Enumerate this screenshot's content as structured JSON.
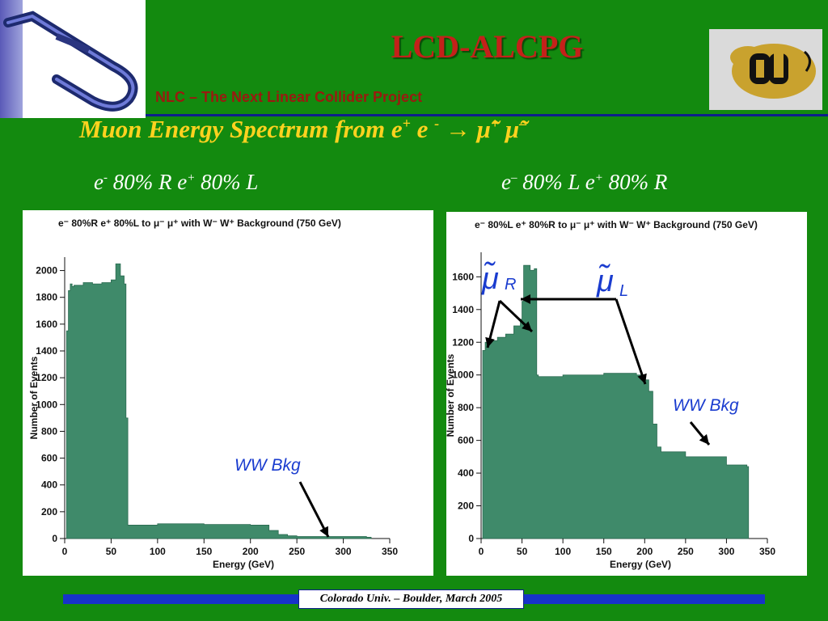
{
  "header": {
    "title": "LCD-ALCPG",
    "subtitle": "NLC – The Next Linear Collider Project",
    "logo_left_icon": "nlc-logo-icon",
    "logo_right_icon": "cu-buffalo-logo-icon"
  },
  "heading": {
    "text": "Muon Energy Spectrum from  e",
    "sup1": "+",
    "mid": " e ",
    "sup2": "-",
    "arrow": "  →  ",
    "smuon": "μ̃",
    "sup3": "+",
    "smuon2": " μ̃",
    "sup4": "–"
  },
  "panels": {
    "left": {
      "e1": "e",
      "s1": "-",
      "t1": "  80% R   e",
      "s2": "+",
      "t2": "  80% L"
    },
    "right": {
      "e1": "e",
      "s1": "–",
      "t1": " 80% L  e",
      "s2": "+",
      "t2": "  80% R"
    }
  },
  "annotations": {
    "ww_bkg": "WW Bkg",
    "smuon_r": "μ̃",
    "smuon_r_sub": "R",
    "smuon_l": "μ̃",
    "smuon_l_sub": "L"
  },
  "footer": {
    "text": "Colorado Univ. – Boulder, March 2005"
  },
  "colors": {
    "bar": "#3f8a6a",
    "background": "#138a0f",
    "title": "#c4211a",
    "heading": "#ffd21f",
    "annotation": "#1a3ccf"
  },
  "chart_data": [
    {
      "type": "bar",
      "title": "e⁻ 80%R e⁺ 80%L to μ⁻ μ⁺ with W⁻ W⁺ Background (750 GeV)",
      "xlabel": "Energy (GeV)",
      "ylabel": "Number of Events",
      "xlim": [
        0,
        350
      ],
      "ylim": [
        0,
        2100
      ],
      "xticks": [
        0,
        50,
        100,
        150,
        200,
        250,
        300,
        350
      ],
      "yticks": [
        0,
        200,
        400,
        600,
        800,
        1000,
        1200,
        1400,
        1600,
        1800,
        2000
      ],
      "bins_x": [
        2,
        4,
        6,
        8,
        10,
        20,
        30,
        40,
        50,
        55,
        60,
        64,
        66,
        68,
        70,
        100,
        150,
        200,
        220,
        230,
        240,
        250,
        300,
        325,
        330
      ],
      "bins_y": [
        1550,
        1850,
        1900,
        1880,
        1890,
        1910,
        1900,
        1910,
        1930,
        2050,
        1960,
        1900,
        900,
        100,
        100,
        110,
        105,
        100,
        60,
        30,
        20,
        15,
        15,
        10,
        0
      ]
    },
    {
      "type": "bar",
      "title": "e⁻ 80%L e⁺ 80%R to μ⁻ μ⁺ with W⁻ W⁺ Background (750 GeV)",
      "xlabel": "Energy (GeV)",
      "ylabel": "Number of Events",
      "xlim": [
        0,
        350
      ],
      "ylim": [
        0,
        1750
      ],
      "xticks": [
        0,
        50,
        100,
        150,
        200,
        250,
        300,
        350
      ],
      "yticks": [
        0,
        200,
        400,
        600,
        800,
        1000,
        1200,
        1400,
        1600
      ],
      "bins_x": [
        2,
        5,
        10,
        20,
        30,
        40,
        48,
        50,
        52,
        60,
        65,
        68,
        70,
        100,
        150,
        190,
        200,
        205,
        210,
        215,
        220,
        250,
        300,
        325,
        327
      ],
      "bins_y": [
        1150,
        1200,
        1210,
        1230,
        1250,
        1300,
        1340,
        1450,
        1670,
        1640,
        1650,
        1000,
        990,
        1000,
        1010,
        1000,
        970,
        900,
        700,
        560,
        530,
        500,
        450,
        440,
        0
      ]
    }
  ]
}
